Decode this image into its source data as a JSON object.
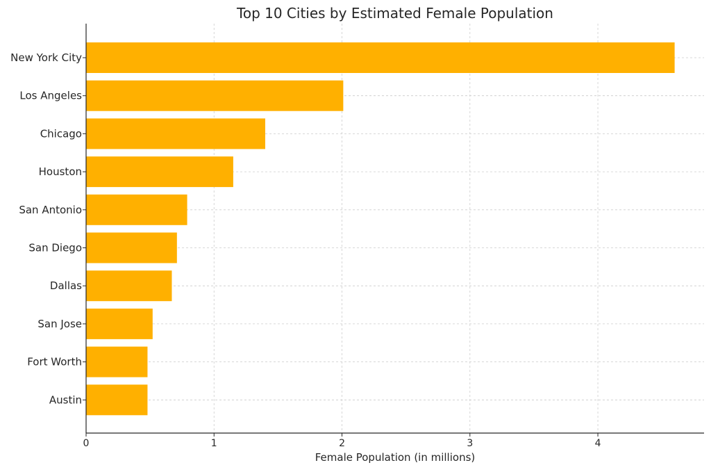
{
  "chart_data": {
    "type": "bar",
    "orientation": "horizontal",
    "title": "Top 10 Cities by Estimated Female Population",
    "xlabel": "Female Population (in millions)",
    "ylabel": "",
    "xlim": [
      0,
      4.83
    ],
    "xticks": [
      0,
      1,
      2,
      3,
      4
    ],
    "grid": true,
    "bar_color": "#ffb000",
    "categories": [
      "New York City",
      "Los Angeles",
      "Chicago",
      "Houston",
      "San Antonio",
      "San Diego",
      "Dallas",
      "San Jose",
      "Fort Worth",
      "Austin"
    ],
    "values": [
      4.6,
      2.01,
      1.4,
      1.15,
      0.79,
      0.71,
      0.67,
      0.52,
      0.48,
      0.48
    ]
  }
}
